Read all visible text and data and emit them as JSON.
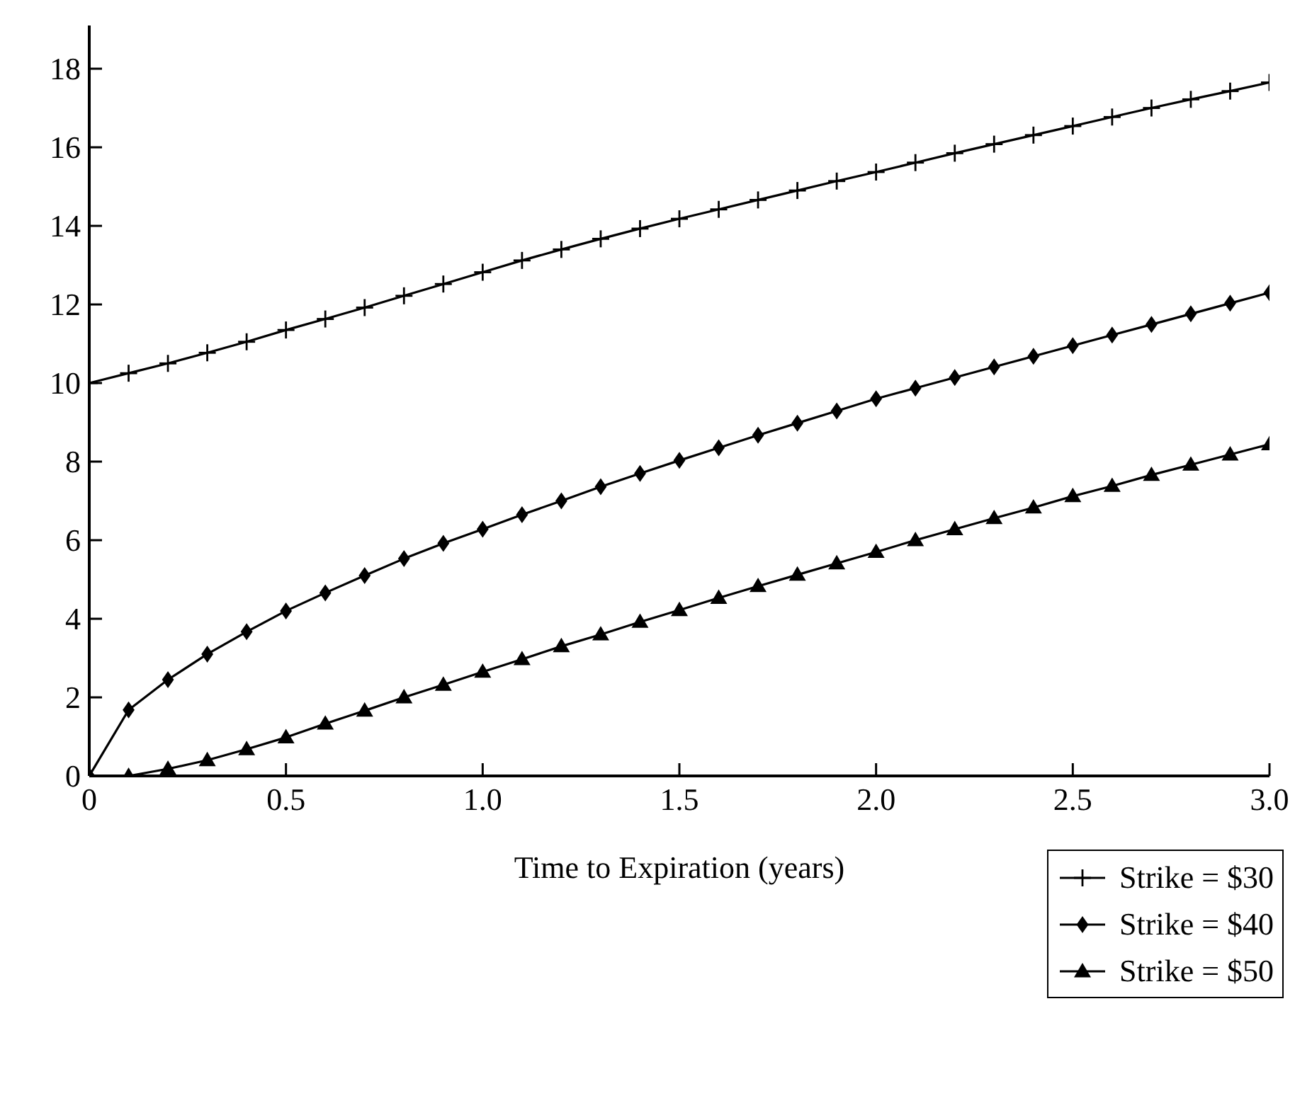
{
  "chart_data": {
    "type": "line",
    "xlabel": "Time to Expiration (years)",
    "x": [
      0,
      0.1,
      0.2,
      0.3,
      0.4,
      0.5,
      0.6,
      0.7,
      0.8,
      0.9,
      1.0,
      1.1,
      1.2,
      1.3,
      1.4,
      1.5,
      1.6,
      1.7,
      1.8,
      1.9,
      2.0,
      2.1,
      2.2,
      2.3,
      2.4,
      2.5,
      2.6,
      2.7,
      2.8,
      2.9,
      3.0
    ],
    "series": [
      {
        "name": "Strike = $30",
        "color": "#000000",
        "marker": "cross",
        "values": [
          10,
          10.25,
          10.5,
          10.77,
          11.05,
          11.35,
          11.63,
          11.92,
          12.22,
          12.52,
          12.82,
          13.12,
          13.4,
          13.67,
          13.93,
          14.18,
          14.42,
          14.66,
          14.9,
          15.14,
          15.37,
          15.61,
          15.85,
          16.08,
          16.31,
          16.54,
          16.77,
          17.0,
          17.22,
          17.43,
          17.65
        ]
      },
      {
        "name": "Strike = $40",
        "color": "#000000",
        "marker": "diamond",
        "values": [
          0,
          1.68,
          2.45,
          3.1,
          3.67,
          4.2,
          4.66,
          5.1,
          5.53,
          5.92,
          6.28,
          6.65,
          7.0,
          7.36,
          7.7,
          8.03,
          8.35,
          8.67,
          8.98,
          9.29,
          9.6,
          9.87,
          10.14,
          10.41,
          10.68,
          10.95,
          11.22,
          11.49,
          11.76,
          12.03,
          12.3
        ]
      },
      {
        "name": "Strike = $50",
        "color": "#000000",
        "marker": "triangle",
        "values": [
          0,
          0,
          0.18,
          0.4,
          0.68,
          0.98,
          1.33,
          1.66,
          2.0,
          2.32,
          2.65,
          2.97,
          3.3,
          3.6,
          3.92,
          4.22,
          4.53,
          4.83,
          5.12,
          5.41,
          5.7,
          6.0,
          6.28,
          6.56,
          6.83,
          7.12,
          7.38,
          7.66,
          7.92,
          8.18,
          8.44
        ]
      }
    ],
    "xlim": [
      0,
      3.0
    ],
    "xticks": [
      0,
      0.5,
      {
        "value": 1,
        "label": "1.0"
      },
      1.5,
      {
        "value": 2,
        "label": "2.0"
      },
      2.5,
      {
        "value": 3,
        "label": "3.0"
      }
    ],
    "ylim": [
      0,
      19.1
    ],
    "yticks": [
      0,
      2,
      4,
      6,
      8,
      10,
      12,
      14,
      16,
      18
    ],
    "grid": false,
    "legend": "bottom right",
    "line_style": "solid"
  }
}
